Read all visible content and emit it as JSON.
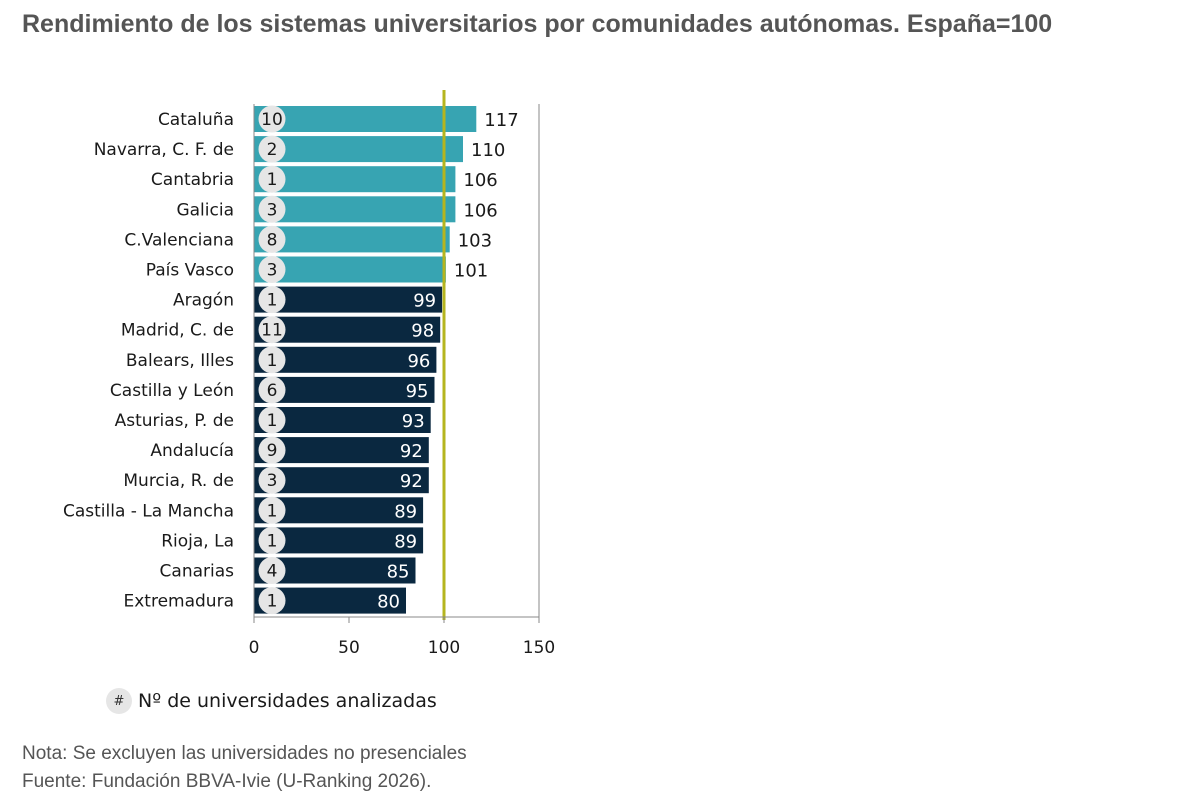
{
  "title": "Rendimiento de los sistemas universitarios por comunidades autónomas. España=100",
  "legend": {
    "symbol": "#",
    "text": "Nº de universidades analizadas"
  },
  "notes": {
    "nota": "Nota: Se excluyen las universidades no presenciales",
    "fuente": "Fuente: Fundación BBVA-Ivie (U-Ranking 2026)."
  },
  "colors": {
    "above": "#37a4b2",
    "below": "#0a2840",
    "reference": "#b5b51f",
    "badge": "#e6e6e6"
  },
  "chart_data": {
    "type": "bar",
    "orientation": "horizontal",
    "title": "Rendimiento de los sistemas universitarios por comunidades autónomas. España=100",
    "categories": [
      "Cataluña",
      "Navarra, C. F. de",
      "Cantabria",
      "Galicia",
      "C.Valenciana",
      "País Vasco",
      "Aragón",
      "Madrid, C. de",
      "Balears, Illes",
      "Castilla y León",
      "Asturias, P. de",
      "Andalucía",
      "Murcia, R. de",
      "Castilla - La Mancha",
      "Rioja, La",
      "Canarias",
      "Extremadura"
    ],
    "values": [
      117,
      110,
      106,
      106,
      103,
      101,
      99,
      98,
      96,
      95,
      93,
      92,
      92,
      89,
      89,
      85,
      80
    ],
    "universities": [
      10,
      2,
      1,
      3,
      8,
      3,
      1,
      11,
      1,
      6,
      1,
      9,
      3,
      1,
      1,
      4,
      1
    ],
    "reference_value": 100,
    "xlim": [
      0,
      150
    ],
    "xticks": [
      0,
      50,
      100,
      150
    ],
    "xlabel": "",
    "ylabel": "",
    "grid": false
  }
}
